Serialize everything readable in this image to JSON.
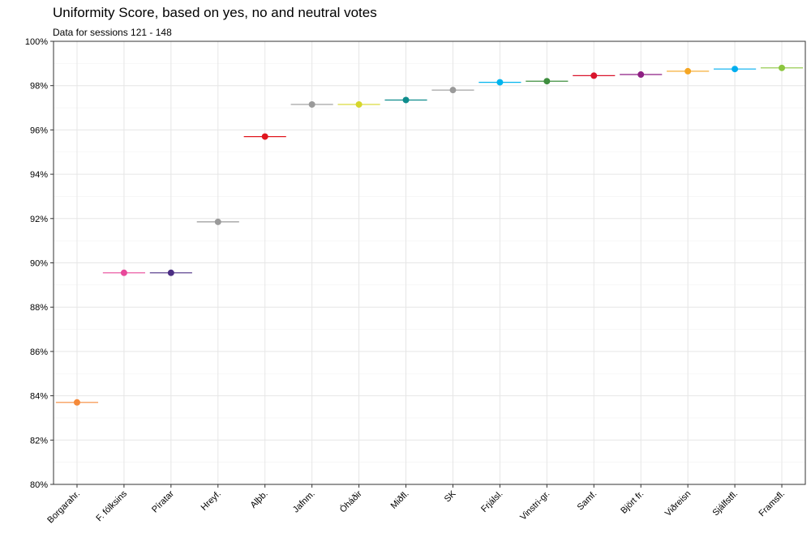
{
  "chart_data": {
    "type": "scatter",
    "title": "Uniformity Score, based on yes, no and neutral votes",
    "subtitle": "Data for sessions 121 - 148",
    "xlabel": "",
    "ylabel": "",
    "ylim": [
      80,
      100
    ],
    "y_ticks": [
      "80%",
      "82%",
      "84%",
      "86%",
      "88%",
      "90%",
      "92%",
      "94%",
      "96%",
      "98%",
      "100%"
    ],
    "y_tick_values": [
      80,
      82,
      84,
      86,
      88,
      90,
      92,
      94,
      96,
      98,
      100
    ],
    "grid": true,
    "legend": "none",
    "categories": [
      "Borgarahr.",
      "F. fólksins",
      "Píratar",
      "Hreyf.",
      "Alþb.",
      "Jafnm.",
      "Óháðir",
      "Miðfl.",
      "SK",
      "Frjálsl.",
      "Vinstri-gr.",
      "Samf.",
      "Björt fr.",
      "Viðreisn",
      "Sjálfstfl.",
      "Framsfl."
    ],
    "values": [
      83.7,
      89.55,
      89.55,
      91.85,
      95.7,
      97.15,
      97.15,
      97.35,
      97.8,
      98.15,
      98.2,
      98.45,
      98.5,
      98.65,
      98.75,
      98.8
    ],
    "colors": [
      "#F58A3A",
      "#E8489A",
      "#4B2E83",
      "#9A9A9A",
      "#E0161E",
      "#9A9A9A",
      "#D6D62A",
      "#0E8C8C",
      "#9A9A9A",
      "#00B4EE",
      "#3E8E3E",
      "#D9142C",
      "#8E1F83",
      "#F5A623",
      "#00AEEF",
      "#8CC63F"
    ]
  }
}
